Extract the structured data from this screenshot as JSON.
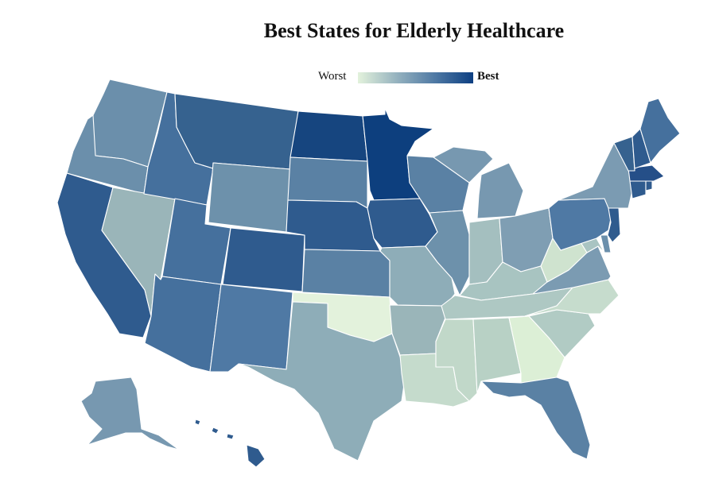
{
  "title": "Best States for Elderly Healthcare",
  "legend": {
    "low_label": "Worst",
    "high_label": "Best",
    "colors": [
      "#e3f2dc",
      "#96b3bf",
      "#4f79a4",
      "#0d3f82"
    ]
  },
  "states": [
    {
      "name": "Washington",
      "color": "#6b8fab"
    },
    {
      "name": "Oregon",
      "color": "#6b8fab"
    },
    {
      "name": "California",
      "color": "#2f5b8e"
    },
    {
      "name": "Nevada",
      "color": "#9ab5b9"
    },
    {
      "name": "Idaho",
      "color": "#45709d"
    },
    {
      "name": "Montana",
      "color": "#36628f"
    },
    {
      "name": "Wyoming",
      "color": "#6d91ab"
    },
    {
      "name": "Utah",
      "color": "#45709d"
    },
    {
      "name": "Arizona",
      "color": "#45709d"
    },
    {
      "name": "Colorado",
      "color": "#2f5b8e"
    },
    {
      "name": "New Mexico",
      "color": "#4f79a4"
    },
    {
      "name": "North Dakota",
      "color": "#16457f"
    },
    {
      "name": "South Dakota",
      "color": "#5a81a4"
    },
    {
      "name": "Nebraska",
      "color": "#2f5b8e"
    },
    {
      "name": "Kansas",
      "color": "#5a81a4"
    },
    {
      "name": "Oklahoma",
      "color": "#e3f2dc"
    },
    {
      "name": "Texas",
      "color": "#8eadb8"
    },
    {
      "name": "Minnesota",
      "color": "#0d3f7e"
    },
    {
      "name": "Iowa",
      "color": "#2f5b8e"
    },
    {
      "name": "Missouri",
      "color": "#8eadb8"
    },
    {
      "name": "Arkansas",
      "color": "#9ab5b9"
    },
    {
      "name": "Louisiana",
      "color": "#c5dbcc"
    },
    {
      "name": "Wisconsin",
      "color": "#5a81a4"
    },
    {
      "name": "Illinois",
      "color": "#6d91ab"
    },
    {
      "name": "Michigan",
      "color": "#7798b0"
    },
    {
      "name": "Indiana",
      "color": "#a4bfbf"
    },
    {
      "name": "Ohio",
      "color": "#7f9eb3"
    },
    {
      "name": "Kentucky",
      "color": "#a8c4c1"
    },
    {
      "name": "Tennessee",
      "color": "#aec8c3"
    },
    {
      "name": "Mississippi",
      "color": "#c1d8c9"
    },
    {
      "name": "Alabama",
      "color": "#b8d1c5"
    },
    {
      "name": "Georgia",
      "color": "#dcefd6"
    },
    {
      "name": "Florida",
      "color": "#5a81a4"
    },
    {
      "name": "South Carolina",
      "color": "#b1cbc4"
    },
    {
      "name": "North Carolina",
      "color": "#c6dccd"
    },
    {
      "name": "Virginia",
      "color": "#7b9bb2"
    },
    {
      "name": "West Virginia",
      "color": "#cfe3cf"
    },
    {
      "name": "Maryland",
      "color": "#a9c4c2"
    },
    {
      "name": "Delaware",
      "color": "#6b8fab"
    },
    {
      "name": "Pennsylvania",
      "color": "#4f79a4"
    },
    {
      "name": "New Jersey",
      "color": "#2f5b8e"
    },
    {
      "name": "New York",
      "color": "#7b9bb2"
    },
    {
      "name": "Connecticut",
      "color": "#2f5b8e"
    },
    {
      "name": "Rhode Island",
      "color": "#2f5b8e"
    },
    {
      "name": "Massachusetts",
      "color": "#254f88"
    },
    {
      "name": "Vermont",
      "color": "#36628f"
    },
    {
      "name": "New Hampshire",
      "color": "#2f5b8e"
    },
    {
      "name": "Maine",
      "color": "#45709d"
    },
    {
      "name": "Alaska",
      "color": "#7798b0"
    },
    {
      "name": "Hawaii",
      "color": "#2f5b8e"
    }
  ]
}
